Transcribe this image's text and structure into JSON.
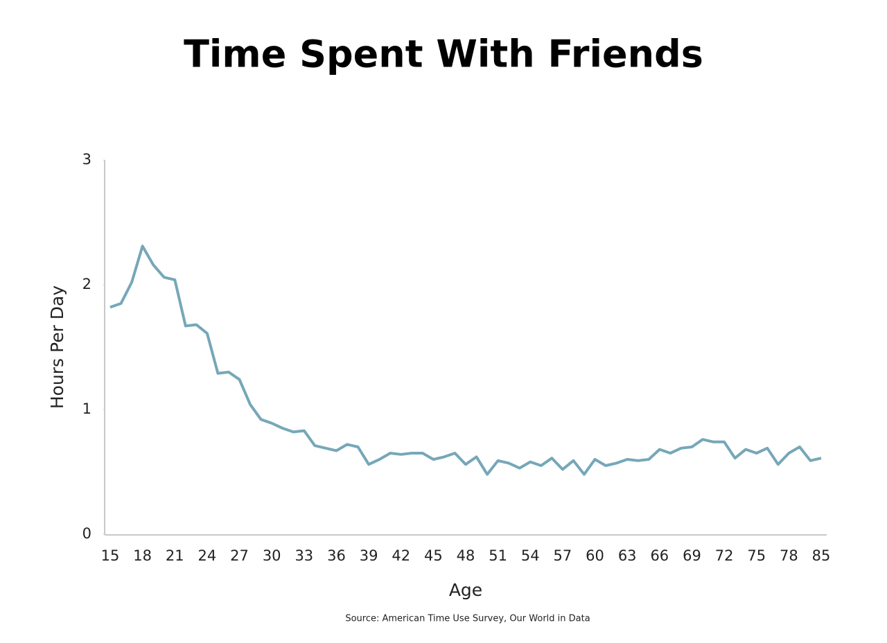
{
  "chart_data": {
    "type": "line",
    "title": "Time Spent With Friends",
    "x_label": "Age",
    "y_label": "Hours Per Day",
    "source": "Source: American Time Use Survey, Our World in Data",
    "categories": [
      "15",
      null,
      null,
      "18",
      null,
      null,
      "21",
      null,
      null,
      "24",
      null,
      null,
      "27",
      null,
      null,
      "30",
      null,
      null,
      "33",
      null,
      null,
      "36",
      null,
      null,
      "39",
      null,
      null,
      "42",
      null,
      null,
      "45",
      null,
      null,
      "48",
      null,
      null,
      "51",
      null,
      null,
      "54",
      null,
      null,
      "57",
      null,
      null,
      "60",
      null,
      null,
      "63",
      null,
      null,
      "66",
      null,
      null,
      "69",
      null,
      null,
      "72",
      null,
      null,
      "75",
      null,
      null,
      "78",
      null,
      null,
      "85"
    ],
    "values": [
      1.82,
      1.85,
      2.02,
      2.31,
      2.16,
      2.06,
      2.04,
      1.67,
      1.68,
      1.61,
      1.29,
      1.3,
      1.24,
      1.04,
      0.92,
      0.89,
      0.85,
      0.82,
      0.83,
      0.71,
      0.69,
      0.67,
      0.72,
      0.7,
      0.56,
      0.6,
      0.65,
      0.64,
      0.65,
      0.65,
      0.6,
      0.62,
      0.65,
      0.56,
      0.62,
      0.48,
      0.59,
      0.57,
      0.53,
      0.58,
      0.55,
      0.61,
      0.52,
      0.59,
      0.48,
      0.6,
      0.55,
      0.57,
      0.6,
      0.59,
      0.6,
      0.68,
      0.65,
      0.69,
      0.7,
      0.76,
      0.74,
      0.74,
      0.61,
      0.68,
      0.65,
      0.69,
      0.56,
      0.65,
      0.7,
      0.59,
      0.61
    ],
    "color": "#76a7b8",
    "ylim": [
      0,
      3
    ],
    "yticks": [
      0,
      1,
      2,
      3
    ],
    "grid": false
  }
}
